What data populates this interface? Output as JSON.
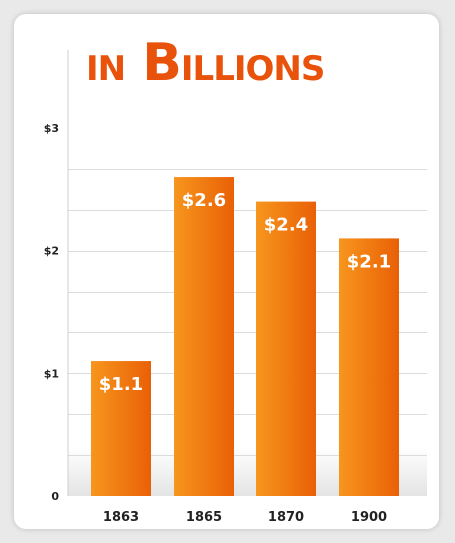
{
  "colors": {
    "bar_light": "#f7961e",
    "bar_dark": "#e96006",
    "title": "#e8520a",
    "grid": "#dcdcdc",
    "axis_text": "#222222",
    "bar_label": "#ffffff"
  },
  "chart_data": {
    "type": "bar",
    "title": "in Billions",
    "xlabel": "",
    "ylabel": "",
    "categories": [
      "1863",
      "1865",
      "1870",
      "1900"
    ],
    "values": [
      1.1,
      2.6,
      2.4,
      2.1
    ],
    "data_labels": [
      "$1.1",
      "$2.6",
      "$2.4",
      "$2.1"
    ],
    "ylim": [
      0,
      3.5
    ],
    "yticks": [
      0,
      1,
      2,
      3
    ],
    "ytick_labels": [
      "0",
      "$1",
      "$2",
      "$3"
    ],
    "grid": true,
    "legend": "none"
  }
}
